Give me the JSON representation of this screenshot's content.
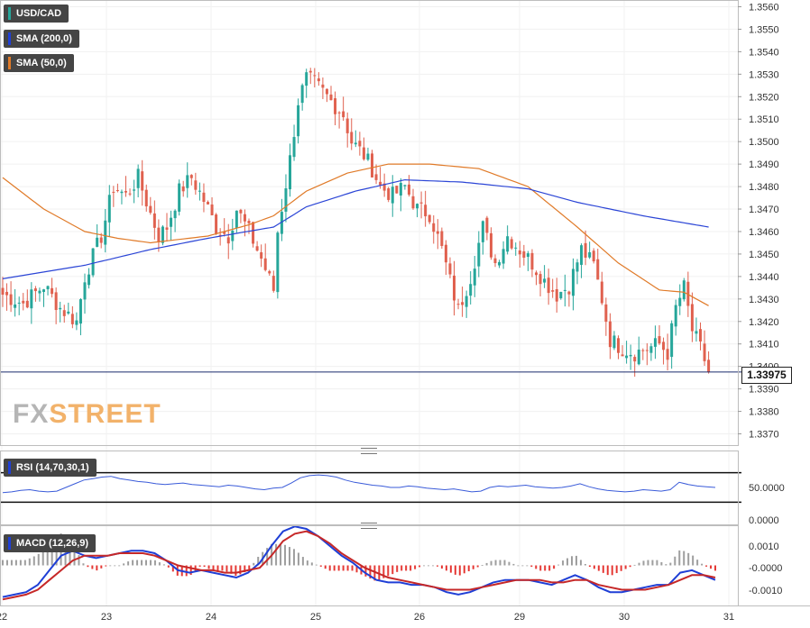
{
  "legends": {
    "symbol": {
      "label": "USD/CAD",
      "color": "#26a69a"
    },
    "sma200": {
      "label": "SMA (200,0)",
      "color": "#1f3fd6"
    },
    "sma50": {
      "label": "SMA (50,0)",
      "color": "#e07a28"
    },
    "rsi": {
      "label": "RSI (14,70,30,1)",
      "color": "#1f3fd6"
    },
    "macd": {
      "label": "MACD (12,26,9)",
      "color": "#1f3fd6"
    }
  },
  "current_price": "1.33975",
  "logo": {
    "fx": "FX",
    "street": "STREET"
  },
  "colors": {
    "up": "#26a69a",
    "down": "#e0614f",
    "sma200": "#2b45d6",
    "sma50": "#e07a28",
    "rsi": "#3a5bd9",
    "macd": "#1f3fd6",
    "signal": "#c62828",
    "hist_pos": "#9e9e9e",
    "hist_neg": "#e53935"
  },
  "chart_data": [
    {
      "type": "candlestick",
      "title": "USD/CAD",
      "x_ticks": [
        "22",
        "23",
        "24",
        "25",
        "26",
        "29",
        "30",
        "31"
      ],
      "y_ticks": [
        "1.3560",
        "1.3550",
        "1.3540",
        "1.3530",
        "1.3520",
        "1.3510",
        "1.3500",
        "1.3490",
        "1.3480",
        "1.3470",
        "1.3460",
        "1.3450",
        "1.3440",
        "1.3430",
        "1.3420",
        "1.3410",
        "1.3400",
        "1.3390",
        "1.3380",
        "1.3370"
      ],
      "ylim": [
        1.3365,
        1.3563
      ],
      "close_path": [
        [
          0,
          1.3432
        ],
        [
          5,
          1.3428
        ],
        [
          10,
          1.3436
        ],
        [
          14,
          1.3426
        ],
        [
          18,
          1.342
        ],
        [
          20,
          1.344
        ],
        [
          24,
          1.3458
        ],
        [
          27,
          1.348
        ],
        [
          30,
          1.3476
        ],
        [
          33,
          1.3484
        ],
        [
          36,
          1.3468
        ],
        [
          38,
          1.3458
        ],
        [
          40,
          1.3462
        ],
        [
          43,
          1.3478
        ],
        [
          46,
          1.3484
        ],
        [
          49,
          1.3474
        ],
        [
          52,
          1.3462
        ],
        [
          55,
          1.3458
        ],
        [
          57,
          1.347
        ],
        [
          60,
          1.346
        ],
        [
          63,
          1.3448
        ],
        [
          66,
          1.3434
        ],
        [
          67,
          1.346
        ],
        [
          70,
          1.3492
        ],
        [
          72,
          1.3518
        ],
        [
          74,
          1.3528
        ],
        [
          76,
          1.3526
        ],
        [
          78,
          1.3522
        ],
        [
          80,
          1.3518
        ],
        [
          83,
          1.3512
        ],
        [
          85,
          1.35
        ],
        [
          88,
          1.3494
        ],
        [
          90,
          1.3488
        ],
        [
          92,
          1.348
        ],
        [
          95,
          1.3476
        ],
        [
          98,
          1.348
        ],
        [
          101,
          1.347
        ],
        [
          104,
          1.3468
        ],
        [
          107,
          1.3452
        ],
        [
          109,
          1.3438
        ],
        [
          111,
          1.3425
        ],
        [
          114,
          1.344
        ],
        [
          117,
          1.3462
        ],
        [
          120,
          1.3446
        ],
        [
          123,
          1.3458
        ],
        [
          126,
          1.3452
        ],
        [
          129,
          1.3446
        ],
        [
          132,
          1.3438
        ],
        [
          135,
          1.3432
        ],
        [
          138,
          1.3436
        ],
        [
          141,
          1.3452
        ],
        [
          144,
          1.3445
        ],
        [
          146,
          1.343
        ],
        [
          148,
          1.3412
        ],
        [
          151,
          1.3408
        ],
        [
          154,
          1.3406
        ],
        [
          157,
          1.3408
        ],
        [
          160,
          1.341
        ],
        [
          162,
          1.3406
        ],
        [
          164,
          1.3426
        ],
        [
          166,
          1.3435
        ],
        [
          168,
          1.3416
        ],
        [
          170,
          1.3408
        ],
        [
          172,
          1.3398
        ]
      ],
      "sma200": [
        [
          0,
          1.3439
        ],
        [
          20,
          1.3445
        ],
        [
          36,
          1.3452
        ],
        [
          50,
          1.3457
        ],
        [
          66,
          1.3462
        ],
        [
          74,
          1.3471
        ],
        [
          86,
          1.3478
        ],
        [
          98,
          1.3483
        ],
        [
          112,
          1.3482
        ],
        [
          128,
          1.3479
        ],
        [
          140,
          1.3473
        ],
        [
          156,
          1.3467
        ],
        [
          172,
          1.3462
        ]
      ],
      "sma50": [
        [
          0,
          1.3484
        ],
        [
          10,
          1.347
        ],
        [
          20,
          1.346
        ],
        [
          28,
          1.3457
        ],
        [
          36,
          1.3455
        ],
        [
          50,
          1.3458
        ],
        [
          60,
          1.3463
        ],
        [
          66,
          1.3467
        ],
        [
          74,
          1.3478
        ],
        [
          84,
          1.3486
        ],
        [
          94,
          1.349
        ],
        [
          104,
          1.349
        ],
        [
          116,
          1.3488
        ],
        [
          128,
          1.348
        ],
        [
          140,
          1.3462
        ],
        [
          150,
          1.3446
        ],
        [
          160,
          1.3434
        ],
        [
          166,
          1.3433
        ],
        [
          172,
          1.3427
        ]
      ],
      "current_price": 1.33975
    },
    {
      "type": "line",
      "title": "RSI (14,70,30,1)",
      "y_ticks": [
        "50.0000",
        "0.0000"
      ],
      "levels": [
        70,
        30
      ],
      "ylim": [
        0,
        100
      ],
      "values": [
        43,
        44,
        46,
        47,
        45,
        44,
        45,
        50,
        55,
        60,
        62,
        64,
        65,
        62,
        60,
        58,
        57,
        55,
        54,
        55,
        56,
        54,
        53,
        52,
        51,
        53,
        52,
        50,
        48,
        47,
        49,
        50,
        56,
        63,
        66,
        67,
        66,
        64,
        60,
        57,
        55,
        53,
        52,
        50,
        50,
        52,
        51,
        49,
        48,
        47,
        48,
        46,
        44,
        45,
        50,
        52,
        51,
        52,
        53,
        51,
        50,
        49,
        50,
        52,
        55,
        51,
        48,
        46,
        45,
        44,
        45,
        47,
        46,
        45,
        47,
        57,
        54,
        52,
        51,
        50
      ]
    },
    {
      "type": "line",
      "title": "MACD (12,26,9)",
      "y_ticks": [
        "0.0010",
        "-0.0000",
        "-0.0010"
      ],
      "ylim": [
        -0.00165,
        0.00165
      ],
      "macd": [
        -0.0013,
        -0.0012,
        -0.0011,
        -0.0008,
        -0.0002,
        0.0004,
        0.0006,
        0.0004,
        0.0003,
        0.0004,
        0.0005,
        0.0006,
        0.0006,
        0.0005,
        0.0002,
        -0.0002,
        -0.0003,
        -0.0002,
        -0.0003,
        -0.0004,
        -0.0005,
        -0.0003,
        0.0001,
        0.0008,
        0.0014,
        0.0016,
        0.0015,
        0.0012,
        0.0008,
        0.0004,
        0.0001,
        -0.0003,
        -0.0006,
        -0.0007,
        -0.0007,
        -0.0008,
        -0.0008,
        -0.0009,
        -0.0011,
        -0.0012,
        -0.0011,
        -0.0009,
        -0.0007,
        -0.0006,
        -0.0006,
        -0.0006,
        -0.0007,
        -0.0008,
        -0.0006,
        -0.0004,
        -0.0006,
        -0.0009,
        -0.0011,
        -0.0011,
        -0.001,
        -0.0009,
        -0.0008,
        -0.0008,
        -0.0003,
        -0.0002,
        -0.0004,
        -0.0006
      ],
      "signal": [
        -0.0014,
        -0.0013,
        -0.0012,
        -0.001,
        -0.0006,
        -0.0002,
        0.0002,
        0.0004,
        0.0004,
        0.0004,
        0.0005,
        0.0005,
        0.0005,
        0.0004,
        0.0002,
        0.0,
        -0.0001,
        -0.0002,
        -0.0002,
        -0.0003,
        -0.0003,
        -0.0002,
        -0.0001,
        0.0004,
        0.001,
        0.0013,
        0.0014,
        0.0012,
        0.0009,
        0.0005,
        0.0002,
        -0.0001,
        -0.0003,
        -0.0005,
        -0.0006,
        -0.0007,
        -0.0008,
        -0.0009,
        -0.001,
        -0.001,
        -0.001,
        -0.0009,
        -0.0008,
        -0.0007,
        -0.0006,
        -0.0006,
        -0.0006,
        -0.0007,
        -0.0007,
        -0.0006,
        -0.0006,
        -0.0008,
        -0.0009,
        -0.001,
        -0.001,
        -0.001,
        -0.0009,
        -0.0008,
        -0.0006,
        -0.0004,
        -0.0004,
        -0.0005
      ]
    }
  ]
}
